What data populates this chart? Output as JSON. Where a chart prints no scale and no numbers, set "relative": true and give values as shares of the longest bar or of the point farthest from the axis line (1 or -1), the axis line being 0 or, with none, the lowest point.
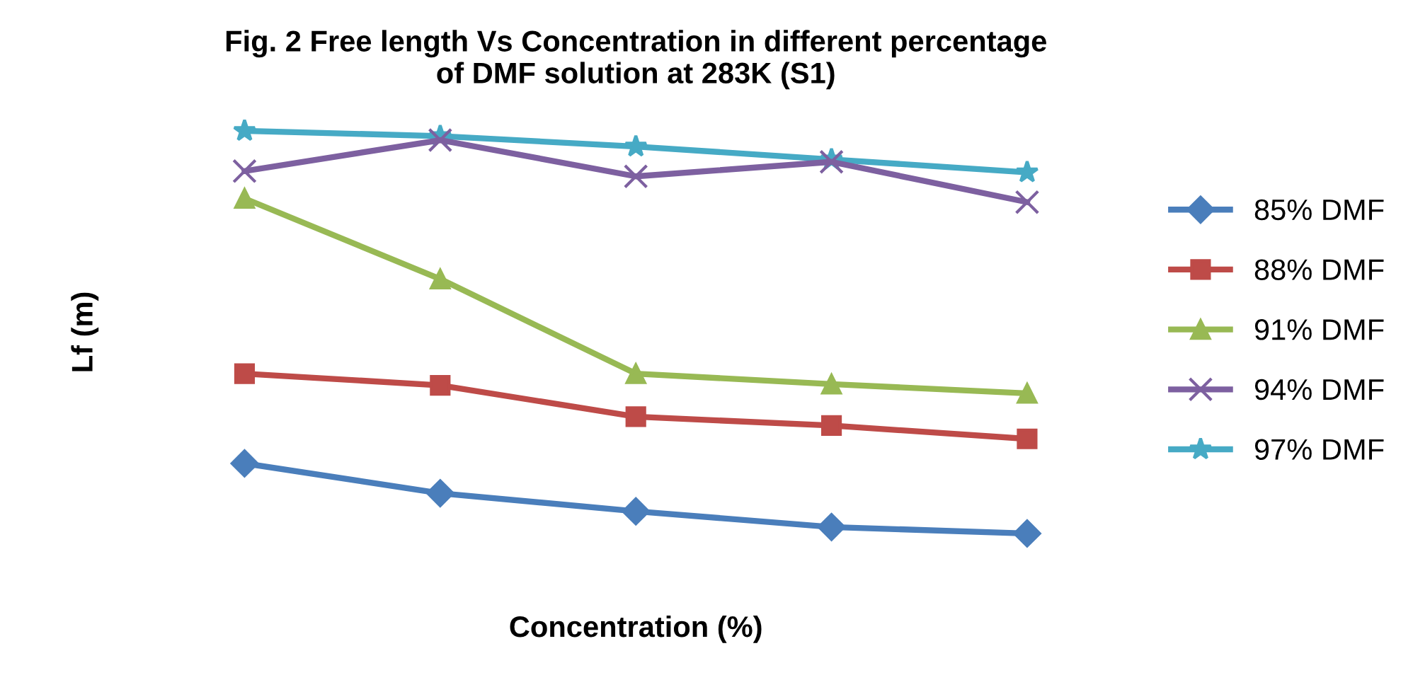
{
  "chart_data": {
    "type": "line",
    "title": "Fig. 2 Free length Vs Concentration in different percentage\nof DMF solution at 283K (S1)",
    "xlabel": "Concentration (%)",
    "ylabel": "Lf (m)",
    "relative": true,
    "legend": "right",
    "grid": false,
    "categories": [
      null,
      null,
      null,
      null,
      null
    ],
    "series": [
      {
        "name": "85% DMF",
        "color": "#4a7ebb",
        "marker": "diamond",
        "values": [
          0.174,
          0.1,
          0.055,
          0.016,
          0
        ]
      },
      {
        "name": "88% DMF",
        "color": "#be4b48",
        "marker": "square",
        "values": [
          0.397,
          0.368,
          0.29,
          0.268,
          0.235
        ]
      },
      {
        "name": "91% DMF",
        "color": "#98b954",
        "marker": "triangle",
        "values": [
          0.832,
          0.632,
          0.397,
          0.371,
          0.348
        ]
      },
      {
        "name": "94% DMF",
        "color": "#7d60a0",
        "marker": "cross",
        "values": [
          0.9,
          0.977,
          0.887,
          0.923,
          0.823
        ]
      },
      {
        "name": "97% DMF",
        "color": "#46aac5",
        "marker": "star",
        "values": [
          1,
          0.987,
          0.961,
          0.929,
          0.897
        ]
      }
    ]
  }
}
